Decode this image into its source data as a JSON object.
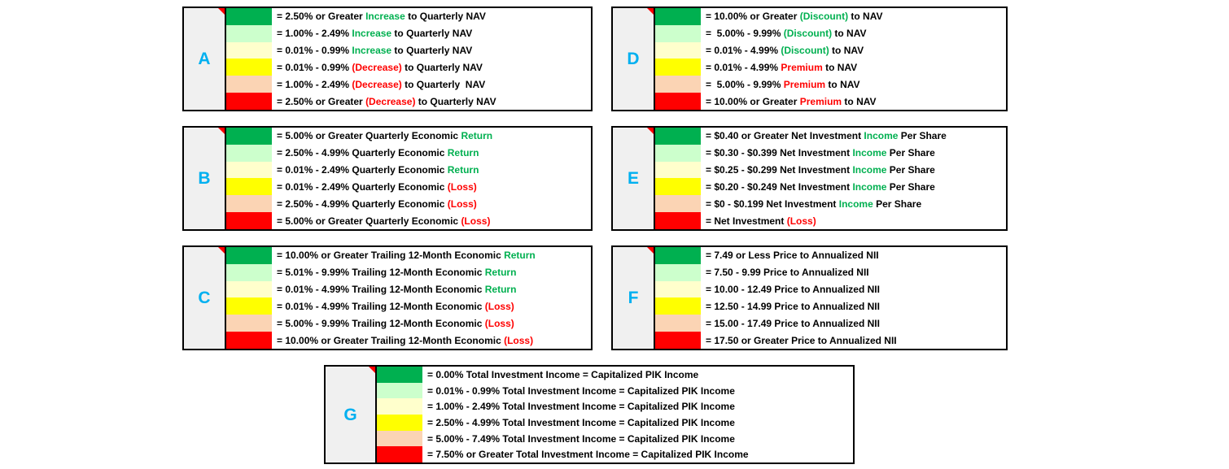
{
  "colors": {
    "swatches": {
      "green": "#00B050",
      "light_green": "#CCFFCC",
      "cream": "#FFFFCC",
      "yellow": "#FFFF00",
      "peach": "#FBD4B4",
      "red": "#FF0000"
    },
    "text_black": "#000000",
    "text_green": "#00B050",
    "text_red": "#FF0000",
    "panel_letter_blue": "#00B0F0",
    "letter_cell_bg": "#F0F0F0",
    "comment_marker_red": "#FF0000"
  },
  "swatch_order": [
    "green",
    "light_green",
    "cream",
    "yellow",
    "peach",
    "red"
  ],
  "panels": [
    {
      "label": "A",
      "rows": [
        {
          "segments": [
            {
              "t": "= 2.50% or Greater ",
              "c": "k"
            },
            {
              "t": "Increase",
              "c": "g"
            },
            {
              "t": " to Quarterly NAV",
              "c": "k"
            }
          ]
        },
        {
          "segments": [
            {
              "t": "= 1.00% - 2.49% ",
              "c": "k"
            },
            {
              "t": "Increase",
              "c": "g"
            },
            {
              "t": " to Quarterly NAV",
              "c": "k"
            }
          ]
        },
        {
          "segments": [
            {
              "t": "= 0.01% - 0.99% ",
              "c": "k"
            },
            {
              "t": "Increase",
              "c": "g"
            },
            {
              "t": " to Quarterly NAV",
              "c": "k"
            }
          ]
        },
        {
          "segments": [
            {
              "t": "= 0.01% - 0.99% ",
              "c": "k"
            },
            {
              "t": "(Decrease)",
              "c": "r"
            },
            {
              "t": " to Quarterly NAV",
              "c": "k"
            }
          ]
        },
        {
          "segments": [
            {
              "t": "= 1.00% - 2.49% ",
              "c": "k"
            },
            {
              "t": "(Decrease)",
              "c": "r"
            },
            {
              "t": " to Quarterly  NAV",
              "c": "k"
            }
          ]
        },
        {
          "segments": [
            {
              "t": "= 2.50% or Greater ",
              "c": "k"
            },
            {
              "t": "(Decrease)",
              "c": "r"
            },
            {
              "t": " to Quarterly NAV",
              "c": "k"
            }
          ]
        }
      ]
    },
    {
      "label": "B",
      "rows": [
        {
          "segments": [
            {
              "t": "= 5.00% or Greater Quarterly Economic ",
              "c": "k"
            },
            {
              "t": "Return",
              "c": "g"
            }
          ]
        },
        {
          "segments": [
            {
              "t": "= 2.50% - 4.99% Quarterly Economic ",
              "c": "k"
            },
            {
              "t": "Return",
              "c": "g"
            }
          ]
        },
        {
          "segments": [
            {
              "t": "= 0.01% - 2.49% Quarterly Economic ",
              "c": "k"
            },
            {
              "t": "Return",
              "c": "g"
            }
          ]
        },
        {
          "segments": [
            {
              "t": "= 0.01% - 2.49% Quarterly Economic ",
              "c": "k"
            },
            {
              "t": "(Loss)",
              "c": "r"
            }
          ]
        },
        {
          "segments": [
            {
              "t": "= 2.50% - 4.99% Quarterly Economic ",
              "c": "k"
            },
            {
              "t": "(Loss)",
              "c": "r"
            }
          ]
        },
        {
          "segments": [
            {
              "t": "= 5.00% or Greater Quarterly Economic ",
              "c": "k"
            },
            {
              "t": "(Loss)",
              "c": "r"
            }
          ]
        }
      ]
    },
    {
      "label": "C",
      "rows": [
        {
          "segments": [
            {
              "t": "= 10.00% or Greater Trailing 12-Month Economic ",
              "c": "k"
            },
            {
              "t": "Return",
              "c": "g"
            }
          ]
        },
        {
          "segments": [
            {
              "t": "= 5.01% - 9.99% Trailing 12-Month Economic ",
              "c": "k"
            },
            {
              "t": "Return",
              "c": "g"
            }
          ]
        },
        {
          "segments": [
            {
              "t": "= 0.01% - 4.99% Trailing 12-Month Economic ",
              "c": "k"
            },
            {
              "t": "Return",
              "c": "g"
            }
          ]
        },
        {
          "segments": [
            {
              "t": "= 0.01% - 4.99% Trailing 12-Month Economic ",
              "c": "k"
            },
            {
              "t": "(Loss)",
              "c": "r"
            }
          ]
        },
        {
          "segments": [
            {
              "t": "= 5.00% - 9.99% Trailing 12-Month Economic ",
              "c": "k"
            },
            {
              "t": "(Loss)",
              "c": "r"
            }
          ]
        },
        {
          "segments": [
            {
              "t": "= 10.00% or Greater Trailing 12-Month Economic ",
              "c": "k"
            },
            {
              "t": "(Loss)",
              "c": "r"
            }
          ]
        }
      ]
    },
    {
      "label": "D",
      "rows": [
        {
          "segments": [
            {
              "t": "= 10.00% or Greater ",
              "c": "k"
            },
            {
              "t": "(Discount)",
              "c": "g"
            },
            {
              "t": " to NAV",
              "c": "k"
            }
          ]
        },
        {
          "segments": [
            {
              "t": "=  5.00% - 9.99% ",
              "c": "k"
            },
            {
              "t": "(Discount)",
              "c": "g"
            },
            {
              "t": " to NAV",
              "c": "k"
            }
          ]
        },
        {
          "segments": [
            {
              "t": "= 0.01% - 4.99% ",
              "c": "k"
            },
            {
              "t": "(Discount)",
              "c": "g"
            },
            {
              "t": " to NAV",
              "c": "k"
            }
          ]
        },
        {
          "segments": [
            {
              "t": "= 0.01% - 4.99% ",
              "c": "k"
            },
            {
              "t": "Premium",
              "c": "r"
            },
            {
              "t": " to NAV",
              "c": "k"
            }
          ]
        },
        {
          "segments": [
            {
              "t": "=  5.00% - 9.99% ",
              "c": "k"
            },
            {
              "t": "Premium",
              "c": "r"
            },
            {
              "t": " to NAV",
              "c": "k"
            }
          ]
        },
        {
          "segments": [
            {
              "t": "= 10.00% or Greater ",
              "c": "k"
            },
            {
              "t": "Premium",
              "c": "r"
            },
            {
              "t": " to NAV",
              "c": "k"
            }
          ]
        }
      ]
    },
    {
      "label": "E",
      "rows": [
        {
          "segments": [
            {
              "t": "= $0.40 or Greater Net Investment ",
              "c": "k"
            },
            {
              "t": "Income",
              "c": "g"
            },
            {
              "t": " Per Share",
              "c": "k"
            }
          ]
        },
        {
          "segments": [
            {
              "t": "= $0.30 - $0.399 Net Investment ",
              "c": "k"
            },
            {
              "t": "Income",
              "c": "g"
            },
            {
              "t": " Per Share",
              "c": "k"
            }
          ]
        },
        {
          "segments": [
            {
              "t": "= $0.25 - $0.299 Net Investment ",
              "c": "k"
            },
            {
              "t": "Income",
              "c": "g"
            },
            {
              "t": " Per Share",
              "c": "k"
            }
          ]
        },
        {
          "segments": [
            {
              "t": "= $0.20 - $0.249 Net Investment ",
              "c": "k"
            },
            {
              "t": "Income",
              "c": "g"
            },
            {
              "t": " Per Share",
              "c": "k"
            }
          ]
        },
        {
          "segments": [
            {
              "t": "= $0 - $0.199 Net Investment ",
              "c": "k"
            },
            {
              "t": "Income",
              "c": "g"
            },
            {
              "t": " Per Share",
              "c": "k"
            }
          ]
        },
        {
          "segments": [
            {
              "t": "= Net Investment ",
              "c": "k"
            },
            {
              "t": "(Loss)",
              "c": "r"
            }
          ]
        }
      ]
    },
    {
      "label": "F",
      "rows": [
        {
          "segments": [
            {
              "t": "= 7.49 or Less Price to Annualized NII",
              "c": "k"
            }
          ]
        },
        {
          "segments": [
            {
              "t": "= 7.50 - 9.99 Price to Annualized NII",
              "c": "k"
            }
          ]
        },
        {
          "segments": [
            {
              "t": "= 10.00 - 12.49 Price to Annualized NII",
              "c": "k"
            }
          ]
        },
        {
          "segments": [
            {
              "t": "= 12.50 - 14.99 Price to Annualized NII",
              "c": "k"
            }
          ]
        },
        {
          "segments": [
            {
              "t": "= 15.00 - 17.49 Price to Annualized NII",
              "c": "k"
            }
          ]
        },
        {
          "segments": [
            {
              "t": "= 17.50 or Greater Price to Annualized NII",
              "c": "k"
            }
          ]
        }
      ]
    },
    {
      "label": "G",
      "rows": [
        {
          "segments": [
            {
              "t": "= 0.00% Total Investment Income = Capitalized PIK Income",
              "c": "k"
            }
          ]
        },
        {
          "segments": [
            {
              "t": "= 0.01% - 0.99% Total Investment Income = Capitalized PIK Income",
              "c": "k"
            }
          ]
        },
        {
          "segments": [
            {
              "t": "= 1.00% - 2.49% Total Investment Income = Capitalized PIK Income",
              "c": "k"
            }
          ]
        },
        {
          "segments": [
            {
              "t": "= 2.50% - 4.99% Total Investment Income = Capitalized PIK Income",
              "c": "k"
            }
          ]
        },
        {
          "segments": [
            {
              "t": "= 5.00% - 7.49% Total Investment Income = Capitalized PIK Income",
              "c": "k"
            }
          ]
        },
        {
          "segments": [
            {
              "t": "= 7.50% or Greater Total Investment Income = Capitalized PIK Income",
              "c": "k"
            }
          ]
        }
      ]
    }
  ]
}
